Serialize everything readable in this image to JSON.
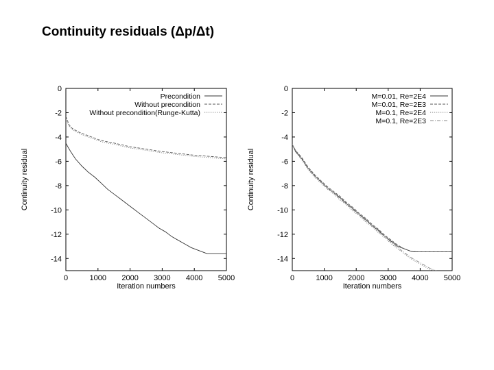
{
  "page": {
    "title": "Continuity residuals (Δp/Δt)"
  },
  "chart_data": [
    {
      "type": "line",
      "title": "",
      "xlabel": "Iteration numbers",
      "ylabel": "Continuity residual",
      "xlim": [
        0,
        5000
      ],
      "ylim": [
        -15,
        0
      ],
      "xticks": [
        0,
        1000,
        2000,
        3000,
        4000,
        5000
      ],
      "yticks": [
        0,
        -2,
        -4,
        -6,
        -8,
        -10,
        -12,
        -14
      ],
      "legend_position": "top-right",
      "grid": false,
      "series": [
        {
          "name": "Precondition",
          "style": "solid",
          "x": [
            0,
            60,
            150,
            300,
            500,
            700,
            900,
            1100,
            1300,
            1500,
            1700,
            1900,
            2100,
            2300,
            2500,
            2700,
            2900,
            3100,
            3300,
            3500,
            3700,
            3900,
            4100,
            4300,
            4400,
            4500,
            4700,
            4900,
            5000
          ],
          "y": [
            -4.5,
            -4.8,
            -5.2,
            -5.8,
            -6.4,
            -6.9,
            -7.3,
            -7.8,
            -8.3,
            -8.7,
            -9.1,
            -9.5,
            -9.9,
            -10.3,
            -10.7,
            -11.1,
            -11.5,
            -11.8,
            -12.2,
            -12.5,
            -12.8,
            -13.1,
            -13.3,
            -13.5,
            -13.6,
            -13.6,
            -13.6,
            -13.6,
            -13.6
          ]
        },
        {
          "name": "Without precondition",
          "style": "dashed",
          "x": [
            0,
            100,
            200,
            400,
            600,
            800,
            1000,
            1200,
            1500,
            2000,
            2500,
            3000,
            3500,
            4000,
            4500,
            5000
          ],
          "y": [
            -2.3,
            -3.0,
            -3.3,
            -3.6,
            -3.8,
            -4.0,
            -4.2,
            -4.35,
            -4.5,
            -4.8,
            -5.0,
            -5.2,
            -5.35,
            -5.5,
            -5.6,
            -5.7
          ]
        },
        {
          "name": "Without precondition(Runge-Kutta)",
          "style": "dotted",
          "x": [
            0,
            100,
            200,
            400,
            600,
            800,
            1000,
            1200,
            1500,
            2000,
            2500,
            3000,
            3500,
            4000,
            4500,
            5000
          ],
          "y": [
            -2.5,
            -3.1,
            -3.4,
            -3.7,
            -3.9,
            -4.1,
            -4.3,
            -4.45,
            -4.6,
            -4.9,
            -5.1,
            -5.3,
            -5.45,
            -5.6,
            -5.7,
            -5.8
          ]
        }
      ]
    },
    {
      "type": "line",
      "title": "",
      "xlabel": "Iteration numbers",
      "ylabel": "Continuity residual",
      "xlim": [
        0,
        5000
      ],
      "ylim": [
        -15,
        0
      ],
      "xticks": [
        0,
        1000,
        2000,
        3000,
        4000,
        5000
      ],
      "yticks": [
        0,
        -2,
        -4,
        -6,
        -8,
        -10,
        -12,
        -14
      ],
      "legend_position": "top-right",
      "grid": false,
      "series": [
        {
          "name": "M=0.01, Re=2E4",
          "style": "solid",
          "x": [
            0,
            100,
            300,
            500,
            700,
            900,
            1100,
            1300,
            1500,
            1700,
            1900,
            2100,
            2300,
            2500,
            2700,
            2900,
            3100,
            3300,
            3500,
            3700,
            3800,
            3900,
            4000,
            4500,
            5000
          ],
          "y": [
            -4.6,
            -5.2,
            -5.8,
            -6.6,
            -7.2,
            -7.7,
            -8.2,
            -8.6,
            -9.0,
            -9.5,
            -9.9,
            -10.4,
            -10.8,
            -11.3,
            -11.7,
            -12.2,
            -12.6,
            -13.0,
            -13.2,
            -13.4,
            -13.45,
            -13.45,
            -13.45,
            -13.45,
            -13.45
          ]
        },
        {
          "name": "M=0.01, Re=2E3",
          "style": "dashed",
          "x": [
            0,
            100,
            300,
            500,
            700,
            900,
            1100,
            1300,
            1500,
            1700,
            1900,
            2100,
            2300,
            2500,
            2700,
            2900,
            3100,
            3300,
            3500,
            3700,
            3900,
            4000,
            4500,
            5000
          ],
          "y": [
            -4.6,
            -5.1,
            -5.7,
            -6.5,
            -7.1,
            -7.6,
            -8.1,
            -8.5,
            -8.9,
            -9.4,
            -9.8,
            -10.3,
            -10.7,
            -11.2,
            -11.6,
            -12.1,
            -12.5,
            -12.9,
            -13.2,
            -13.4,
            -13.45,
            -13.45,
            -13.45,
            -13.45
          ]
        },
        {
          "name": "M=0.1, Re=2E4",
          "style": "dotted",
          "x": [
            0,
            100,
            300,
            500,
            700,
            900,
            1100,
            1300,
            1500,
            1700,
            1900,
            2100,
            2300,
            2500,
            2700,
            2900,
            3100,
            3300,
            3500,
            3700,
            3900,
            4100,
            4300,
            4400
          ],
          "y": [
            -4.6,
            -5.2,
            -5.9,
            -6.7,
            -7.3,
            -7.8,
            -8.3,
            -8.7,
            -9.2,
            -9.6,
            -10.1,
            -10.5,
            -11.0,
            -11.4,
            -11.9,
            -12.3,
            -12.8,
            -13.2,
            -13.6,
            -14.0,
            -14.3,
            -14.6,
            -14.9,
            -15.0
          ]
        },
        {
          "name": "M=0.1, Re=2E3",
          "style": "dash-dot",
          "x": [
            0,
            100,
            300,
            500,
            700,
            900,
            1100,
            1300,
            1500,
            1700,
            1900,
            2100,
            2300,
            2500,
            2700,
            2900,
            3100,
            3300,
            3500,
            3700,
            3900,
            4100,
            4300,
            4500
          ],
          "y": [
            -4.6,
            -5.1,
            -5.8,
            -6.6,
            -7.2,
            -7.7,
            -8.2,
            -8.6,
            -9.1,
            -9.5,
            -10.0,
            -10.4,
            -10.9,
            -11.3,
            -11.8,
            -12.2,
            -12.7,
            -13.1,
            -13.5,
            -13.9,
            -14.2,
            -14.5,
            -14.8,
            -15.0
          ]
        }
      ]
    }
  ]
}
